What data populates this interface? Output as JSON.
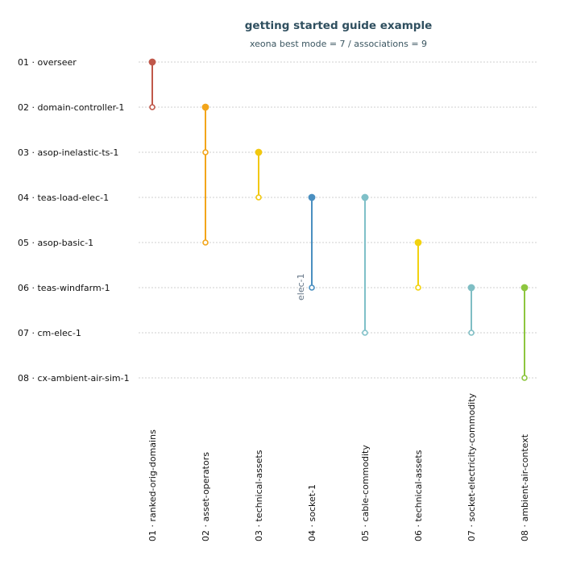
{
  "title": "getting started guide example",
  "subtitle": "xeona best mode = 7 / associations = 9",
  "rows": [
    "01 · overseer",
    "02 · domain-controller-1",
    "03 · asop-inelastic-ts-1",
    "04 · teas-load-elec-1",
    "05 · asop-basic-1",
    "06 · teas-windfarm-1",
    "07 · cm-elec-1",
    "08 · cx-ambient-air-sim-1"
  ],
  "columns": [
    "01 · ranked-orig-domains",
    "02 · asset-operators",
    "03 · technical-assets",
    "04 · socket-1",
    "05 · cable-commodity",
    "06 · technical-assets",
    "07 · socket-electricity-commodity",
    "08 · ambient-air-context"
  ],
  "associations": [
    {
      "column": 1,
      "from": 1,
      "to": 2,
      "color": "#c0584a"
    },
    {
      "column": 2,
      "from": 2,
      "to": 5,
      "color": "#f2a51a"
    },
    {
      "column": 2,
      "from": 3,
      "to": 3,
      "color": "#f2a51a"
    },
    {
      "column": 3,
      "from": 3,
      "to": 4,
      "color": "#f2c80f"
    },
    {
      "column": 4,
      "from": 4,
      "to": 6,
      "color": "#4a8fc0",
      "label": "elec-1"
    },
    {
      "column": 5,
      "from": 4,
      "to": 7,
      "color": "#7fc0c8"
    },
    {
      "column": 6,
      "from": 5,
      "to": 6,
      "color": "#f2d20f"
    },
    {
      "column": 7,
      "from": 6,
      "to": 7,
      "color": "#7fbec4"
    },
    {
      "column": 8,
      "from": 6,
      "to": 8,
      "color": "#8dc63f"
    }
  ]
}
